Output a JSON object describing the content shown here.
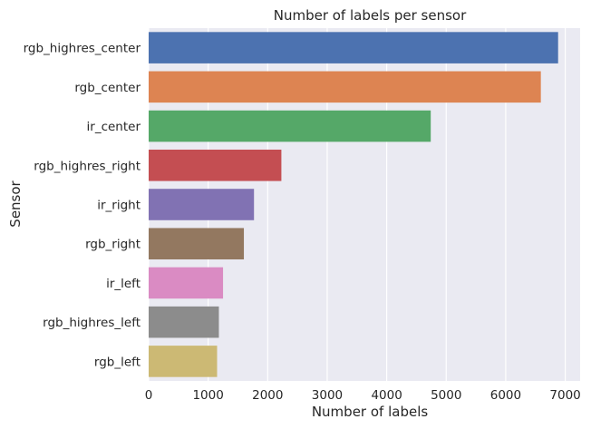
{
  "chart_data": {
    "type": "bar",
    "orientation": "horizontal",
    "title": "Number of labels per sensor",
    "xlabel": "Number of labels",
    "ylabel": "Sensor",
    "categories": [
      "rgb_highres_center",
      "rgb_center",
      "ir_center",
      "rgb_highres_right",
      "ir_right",
      "rgb_right",
      "ir_left",
      "rgb_highres_left",
      "rgb_left"
    ],
    "values": [
      6880,
      6590,
      4740,
      2230,
      1770,
      1600,
      1250,
      1180,
      1150
    ],
    "colors": [
      "#4c72b0",
      "#dd8452",
      "#55a868",
      "#c44e52",
      "#8172b3",
      "#937860",
      "#da8bc3",
      "#8c8c8c",
      "#ccb974"
    ],
    "xlim": [
      0,
      7250
    ],
    "xticks": [
      0,
      1000,
      2000,
      3000,
      4000,
      5000,
      6000,
      7000
    ],
    "xtick_labels": [
      "0",
      "1000",
      "2000",
      "3000",
      "4000",
      "5000",
      "6000",
      "7000"
    ],
    "grid": true,
    "plot_background": "#eaeaf2",
    "grid_color": "#ffffff"
  }
}
